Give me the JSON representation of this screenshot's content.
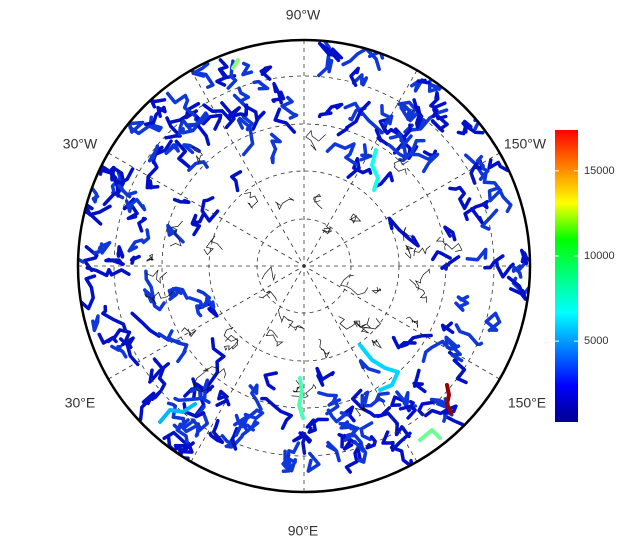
{
  "chart_data": {
    "type": "map",
    "meridian_labels": [
      "90°W",
      "30°W",
      "150°W",
      "30°E",
      "150°E",
      "90°E"
    ],
    "colorbar": {
      "lim": [
        250,
        17400
      ],
      "ticks": [
        5000,
        10000,
        15000
      ]
    },
    "rivers": [
      {
        "value": 17000
      },
      {
        "value": 8000
      },
      {
        "value": 6000
      },
      {
        "value": 5500
      },
      {
        "value": 7000
      },
      {
        "value": 9000
      },
      {
        "value": 8500
      }
    ]
  }
}
